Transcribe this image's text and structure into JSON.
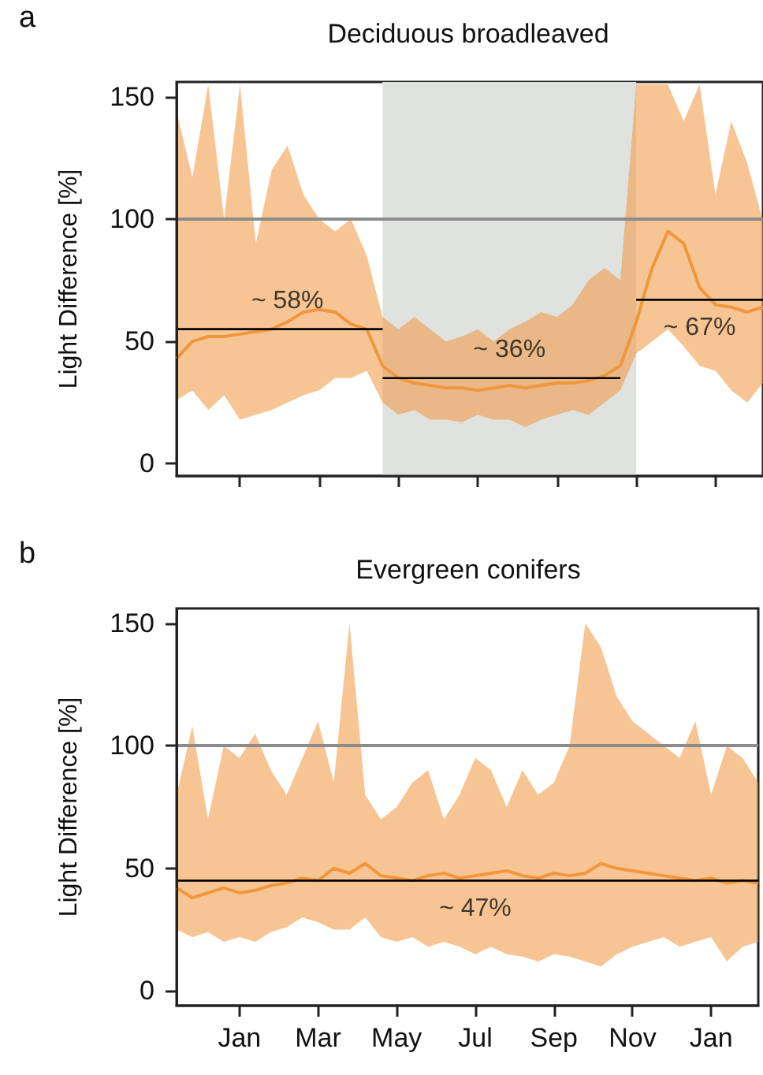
{
  "chart_data": [
    {
      "type": "line",
      "title": "Deciduous broadleaved",
      "ylabel": "Light Difference [%]",
      "annotations": [
        "a",
        {
          "text": "~ 58%",
          "y": 55
        },
        {
          "text": "~ 36%",
          "y": 35
        },
        {
          "text": "~ 67%",
          "y": 67
        }
      ],
      "categories": [
        null,
        null,
        null,
        null,
        null,
        null,
        null,
        null,
        null,
        null,
        null,
        null,
        null,
        null,
        null,
        null,
        null,
        null,
        null,
        null,
        null,
        null,
        null,
        null,
        null,
        null,
        null,
        null,
        null,
        null,
        null,
        null,
        null,
        null,
        null,
        null,
        null,
        null
      ],
      "series": [
        {
          "color": "#f0963c",
          "values": [
            43,
            50,
            52,
            52,
            53,
            54,
            55,
            58,
            62,
            63,
            62,
            57,
            55,
            40,
            35,
            33,
            32,
            31,
            31,
            30,
            31,
            32,
            31,
            32,
            33,
            33,
            34,
            36,
            40,
            58,
            80,
            95,
            90,
            72,
            65,
            64,
            62,
            64
          ],
          "lower": [
            26,
            30,
            22,
            28,
            18,
            20,
            22,
            25,
            28,
            30,
            35,
            35,
            38,
            25,
            20,
            22,
            18,
            18,
            17,
            20,
            18,
            18,
            15,
            18,
            20,
            22,
            20,
            25,
            30,
            45,
            50,
            55,
            48,
            40,
            38,
            30,
            25,
            33
          ],
          "upper": [
            144,
            117,
            155,
            100,
            155,
            90,
            120,
            130,
            110,
            100,
            95,
            100,
            85,
            60,
            55,
            60,
            55,
            50,
            52,
            55,
            50,
            55,
            58,
            62,
            60,
            65,
            75,
            80,
            75,
            155,
            155,
            155,
            140,
            155,
            110,
            140,
            123,
            99
          ]
        },
        {
          "type": "line",
          "color": "#000000",
          "values": [
            55,
            55,
            55,
            55,
            55,
            55,
            55,
            55,
            55,
            55,
            55,
            55,
            55,
            55,
            null,
            null,
            null,
            null,
            null,
            null,
            null,
            null,
            null,
            null,
            null,
            null,
            null,
            null,
            null,
            null,
            null,
            null,
            null,
            null,
            null,
            null,
            null,
            null
          ]
        },
        {
          "type": "line",
          "color": "#000000",
          "values": [
            null,
            null,
            null,
            null,
            null,
            null,
            null,
            null,
            null,
            null,
            null,
            null,
            null,
            35,
            35,
            35,
            35,
            35,
            35,
            35,
            35,
            35,
            35,
            35,
            35,
            35,
            35,
            35,
            35,
            null,
            null,
            null,
            null,
            null,
            null,
            null,
            null,
            null
          ]
        },
        {
          "type": "line",
          "color": "#000000",
          "values": [
            null,
            null,
            null,
            null,
            null,
            null,
            null,
            null,
            null,
            null,
            null,
            null,
            null,
            null,
            null,
            null,
            null,
            null,
            null,
            null,
            null,
            null,
            null,
            null,
            null,
            null,
            null,
            null,
            null,
            67,
            67,
            67,
            67,
            67,
            67,
            67,
            67,
            67
          ]
        }
      ],
      "ylim": [
        -5,
        156
      ],
      "yticks": [
        0,
        50,
        100,
        150
      ],
      "ref_lines": [
        {
          "axis": "y",
          "value": 100,
          "color": "#8c8c8c"
        }
      ],
      "tick_labels": "y"
    },
    {
      "type": "line",
      "title": "Evergreen conifers",
      "ylabel": "Light Difference [%]",
      "annotations": [
        "b",
        {
          "text": "~ 47%",
          "y": 45
        }
      ],
      "categories": [
        null,
        null,
        null,
        null,
        "Jan",
        null,
        null,
        null,
        null,
        "Mar",
        null,
        null,
        null,
        null,
        "May",
        null,
        null,
        null,
        null,
        "Jul",
        null,
        null,
        null,
        null,
        "Sep",
        null,
        null,
        null,
        null,
        "Nov",
        null,
        null,
        null,
        null,
        "Jan",
        null,
        null,
        null
      ],
      "series": [
        {
          "color": "#f0963c",
          "values": [
            42,
            38,
            40,
            42,
            40,
            41,
            43,
            44,
            46,
            45,
            50,
            48,
            52,
            47,
            46,
            45,
            47,
            48,
            46,
            47,
            48,
            49,
            47,
            46,
            48,
            47,
            48,
            52,
            50,
            49,
            48,
            47,
            46,
            45,
            46,
            44,
            45,
            44
          ],
          "lower": [
            25,
            22,
            24,
            20,
            22,
            20,
            24,
            26,
            30,
            28,
            25,
            25,
            30,
            22,
            20,
            22,
            18,
            20,
            18,
            15,
            18,
            15,
            14,
            12,
            15,
            14,
            12,
            10,
            15,
            18,
            20,
            22,
            18,
            20,
            22,
            12,
            18,
            20
          ],
          "upper": [
            80,
            108,
            70,
            100,
            95,
            105,
            90,
            80,
            95,
            110,
            85,
            150,
            80,
            70,
            75,
            85,
            90,
            70,
            80,
            95,
            90,
            75,
            90,
            80,
            85,
            100,
            150,
            140,
            120,
            110,
            105,
            100,
            95,
            110,
            80,
            100,
            95,
            85
          ]
        },
        {
          "type": "line",
          "color": "#000000",
          "values": [
            45,
            45,
            45,
            45,
            45,
            45,
            45,
            45,
            45,
            45,
            45,
            45,
            45,
            45,
            45,
            45,
            45,
            45,
            45,
            45,
            45,
            45,
            45,
            45,
            45,
            45,
            45,
            45,
            45,
            45,
            45,
            45,
            45,
            45,
            45,
            45,
            45,
            45
          ]
        }
      ],
      "ylim": [
        -6,
        156
      ],
      "yticks": [
        0,
        50,
        100,
        150
      ],
      "ref_lines": [
        {
          "axis": "y",
          "value": 100,
          "color": "#8c8c8c"
        }
      ]
    }
  ]
}
